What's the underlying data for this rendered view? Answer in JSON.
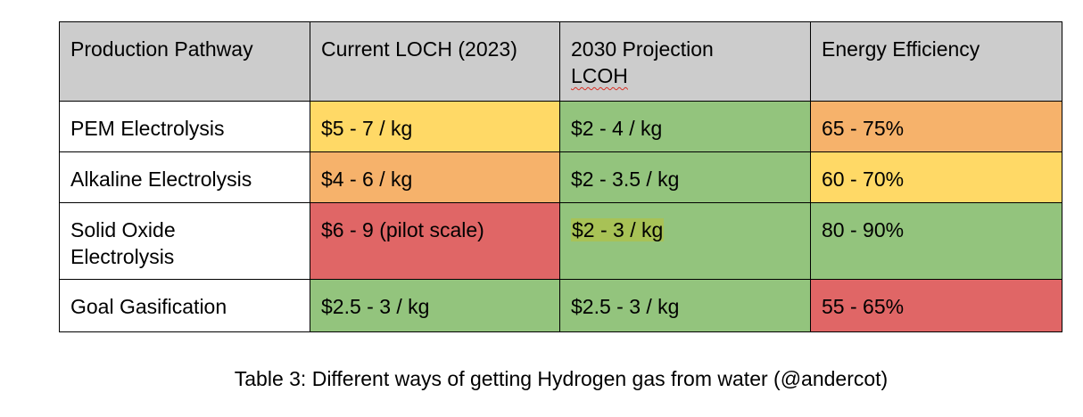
{
  "table": {
    "headers": [
      {
        "text": "Production Pathway"
      },
      {
        "text": "Current LOCH (2023)"
      },
      {
        "text_line1": "2030 Projection",
        "text_line2": "LCOH"
      },
      {
        "text": "Energy Efficiency"
      }
    ],
    "rows": [
      {
        "pathway": "PEM Electrolysis",
        "current": {
          "text": "$5 - 7 / kg",
          "color": "#ffd966"
        },
        "projection": {
          "text": "$2 - 4 / kg",
          "color": "#93c47d"
        },
        "efficiency": {
          "text": "65 - 75%",
          "color": "#f6b26b"
        }
      },
      {
        "pathway": "Alkaline Electrolysis",
        "current": {
          "text": "$4 - 6 / kg",
          "color": "#f6b26b"
        },
        "projection": {
          "text": "$2 - 3.5 / kg",
          "color": "#93c47d"
        },
        "efficiency": {
          "text": "60 - 70%",
          "color": "#ffd966"
        }
      },
      {
        "pathway_line1": "Solid Oxide",
        "pathway_line2": "Electrolysis",
        "current": {
          "text": "$6 - 9 (pilot scale)",
          "color": "#e06666"
        },
        "projection": {
          "text": "$2 - 3 / kg",
          "color": "#93c47d",
          "highlight": "#a8c256"
        },
        "efficiency": {
          "text": "80 - 90%",
          "color": "#93c47d"
        }
      },
      {
        "pathway": "Goal Gasification",
        "current": {
          "text": "$2.5 - 3 / kg",
          "color": "#93c47d"
        },
        "projection": {
          "text": "$2.5 - 3 / kg",
          "color": "#93c47d"
        },
        "efficiency": {
          "text": "55 - 65%",
          "color": "#e06666"
        }
      }
    ]
  },
  "caption": "Table 3: Different ways of getting Hydrogen gas from water (@andercot)"
}
